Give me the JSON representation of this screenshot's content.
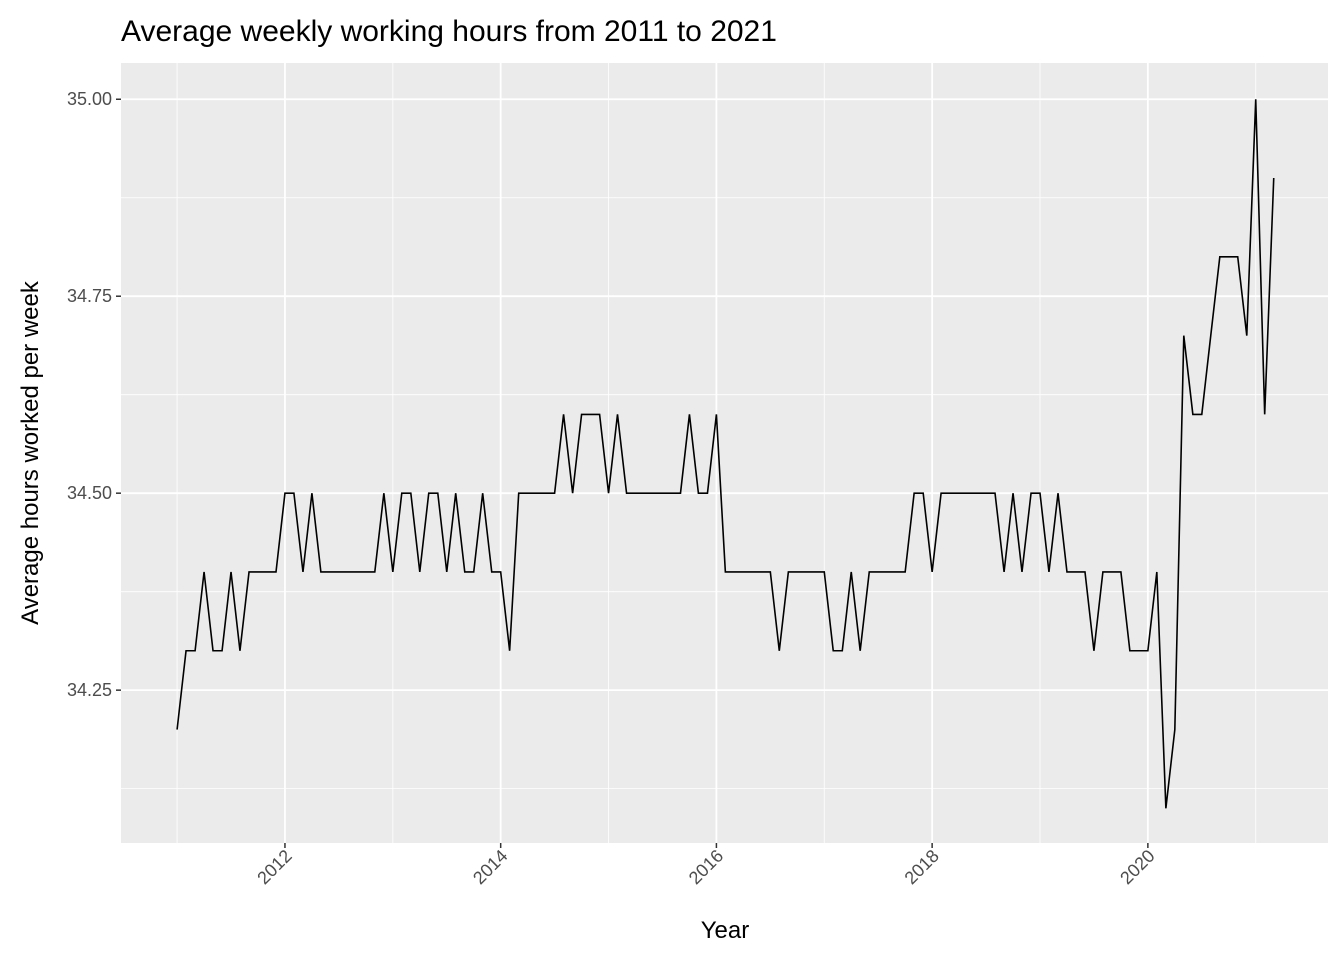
{
  "chart_data": {
    "type": "line",
    "title": "Average weekly working hours from 2011 to 2021",
    "x_label": "Year",
    "y_label": "Average hours worked per week",
    "x": [
      2011,
      2011.083,
      2011.167,
      2011.25,
      2011.333,
      2011.417,
      2011.5,
      2011.583,
      2011.667,
      2011.75,
      2011.833,
      2011.917,
      2012,
      2012.083,
      2012.167,
      2012.25,
      2012.333,
      2012.417,
      2012.5,
      2012.583,
      2012.667,
      2012.75,
      2012.833,
      2012.917,
      2013,
      2013.083,
      2013.167,
      2013.25,
      2013.333,
      2013.417,
      2013.5,
      2013.583,
      2013.667,
      2013.75,
      2013.833,
      2013.917,
      2014,
      2014.083,
      2014.167,
      2014.25,
      2014.333,
      2014.417,
      2014.5,
      2014.583,
      2014.667,
      2014.75,
      2014.833,
      2014.917,
      2015,
      2015.083,
      2015.167,
      2015.25,
      2015.333,
      2015.417,
      2015.5,
      2015.583,
      2015.667,
      2015.75,
      2015.833,
      2015.917,
      2016,
      2016.083,
      2016.167,
      2016.25,
      2016.333,
      2016.417,
      2016.5,
      2016.583,
      2016.667,
      2016.75,
      2016.833,
      2016.917,
      2017,
      2017.083,
      2017.167,
      2017.25,
      2017.333,
      2017.417,
      2017.5,
      2017.583,
      2017.667,
      2017.75,
      2017.833,
      2017.917,
      2018,
      2018.083,
      2018.167,
      2018.25,
      2018.333,
      2018.417,
      2018.5,
      2018.583,
      2018.667,
      2018.75,
      2018.833,
      2018.917,
      2019,
      2019.083,
      2019.167,
      2019.25,
      2019.333,
      2019.417,
      2019.5,
      2019.583,
      2019.667,
      2019.75,
      2019.833,
      2019.917,
      2020,
      2020.083,
      2020.167,
      2020.25,
      2020.333,
      2020.417,
      2020.5,
      2020.583,
      2020.667,
      2020.75,
      2020.833,
      2020.917,
      2021,
      2021.083,
      2021.167
    ],
    "series": [
      {
        "color": "#000000",
        "values": [
          34.2,
          34.3,
          34.3,
          34.4,
          34.3,
          34.3,
          34.4,
          34.3,
          34.4,
          34.4,
          34.4,
          34.4,
          34.5,
          34.5,
          34.4,
          34.5,
          34.4,
          34.4,
          34.4,
          34.4,
          34.4,
          34.4,
          34.4,
          34.5,
          34.4,
          34.5,
          34.5,
          34.4,
          34.5,
          34.5,
          34.4,
          34.5,
          34.4,
          34.4,
          34.5,
          34.4,
          34.4,
          34.3,
          34.5,
          34.5,
          34.5,
          34.5,
          34.5,
          34.6,
          34.5,
          34.6,
          34.6,
          34.6,
          34.5,
          34.6,
          34.5,
          34.5,
          34.5,
          34.5,
          34.5,
          34.5,
          34.5,
          34.6,
          34.5,
          34.5,
          34.6,
          34.4,
          34.4,
          34.4,
          34.4,
          34.4,
          34.4,
          34.3,
          34.4,
          34.4,
          34.4,
          34.4,
          34.4,
          34.3,
          34.3,
          34.4,
          34.3,
          34.4,
          34.4,
          34.4,
          34.4,
          34.4,
          34.5,
          34.5,
          34.4,
          34.5,
          34.5,
          34.5,
          34.5,
          34.5,
          34.5,
          34.5,
          34.4,
          34.5,
          34.4,
          34.5,
          34.5,
          34.4,
          34.5,
          34.4,
          34.4,
          34.4,
          34.3,
          34.4,
          34.4,
          34.4,
          34.3,
          34.3,
          34.3,
          34.4,
          34.1,
          34.2,
          34.7,
          34.6,
          34.6,
          34.7,
          34.8,
          34.8,
          34.8,
          34.7,
          35.0,
          34.6,
          34.9
        ]
      }
    ],
    "xlim": [
      2010.48,
      2021.67
    ],
    "ylim": [
      34.056,
      35.046
    ],
    "xticks": [
      2012,
      2014,
      2016,
      2018,
      2020
    ],
    "yticks": [
      {
        "value": 34.25,
        "label": "34.25"
      },
      {
        "value": 34.5,
        "label": "34.50"
      },
      {
        "value": 34.75,
        "label": "34.75"
      },
      {
        "value": 35,
        "label": "35.00"
      }
    ],
    "grid": true
  }
}
